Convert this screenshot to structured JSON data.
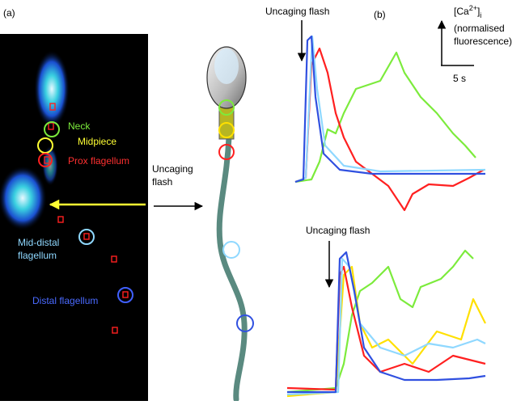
{
  "panel_a": {
    "label": "(a)",
    "regions": {
      "neck": "Neck",
      "midpiece": "Midpiece",
      "prox": "Prox flagellum",
      "mid_distal": [
        "Mid-distal",
        "flagellum"
      ],
      "distal": "Distal flagellum"
    },
    "flash_label": [
      "Uncaging",
      "flash"
    ]
  },
  "panel_b": {
    "label": "(b)",
    "top_flash_label": "Uncaging flash",
    "bottom_flash_label": "Uncaging flash",
    "y_scale_label": {
      "open": "[Ca",
      "sup": "2+",
      "close": "]",
      "sub": "i",
      "lines": [
        "(normalised",
        "fluorescence)"
      ]
    },
    "time_scale_label": "5 s"
  }
}
